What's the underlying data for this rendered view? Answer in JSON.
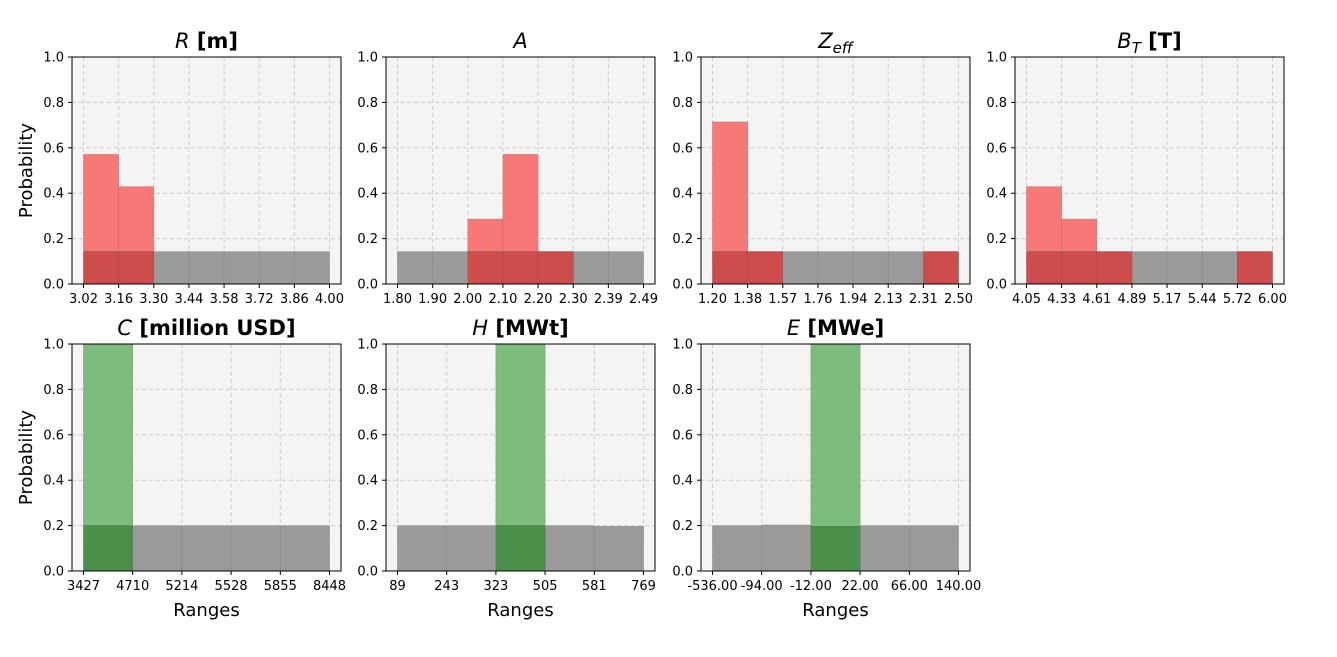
{
  "figure": {
    "y_tick_labels": [
      "0.0",
      "0.2",
      "0.4",
      "0.6",
      "0.8",
      "1.0"
    ],
    "ylabel": "Probability",
    "xlabel": "Ranges"
  },
  "colors": {
    "prior": "#9a9a9a",
    "input_posterior": "#f87878",
    "input_overlap": "#cf4c4c",
    "output_posterior": "#7cbc7c",
    "output_overlap": "#4a8f4a",
    "plot_background": "#f4f4f4",
    "grid": "#cccccc"
  },
  "chart_data": [
    {
      "type": "bar",
      "title_symbol": "R",
      "title_unit": "[m]",
      "x_tick_labels": [
        "3.02",
        "3.16",
        "3.30",
        "3.44",
        "3.58",
        "3.72",
        "3.86",
        "4.00"
      ],
      "ylim": [
        0,
        1
      ],
      "series": [
        {
          "role": "prior",
          "values": [
            0.143,
            0.143,
            0.143,
            0.143,
            0.143,
            0.143,
            0.143
          ]
        },
        {
          "role": "posterior",
          "values": [
            0.571,
            0.429,
            0,
            0,
            0,
            0,
            0
          ]
        }
      ]
    },
    {
      "type": "bar",
      "title_symbol": "A",
      "title_unit": "",
      "x_tick_labels": [
        "1.80",
        "1.90",
        "2.00",
        "2.10",
        "2.20",
        "2.30",
        "2.39",
        "2.49"
      ],
      "ylim": [
        0,
        1
      ],
      "series": [
        {
          "role": "prior",
          "values": [
            0.143,
            0.143,
            0.143,
            0.143,
            0.143,
            0.143,
            0.143
          ]
        },
        {
          "role": "posterior",
          "values": [
            0,
            0,
            0.286,
            0.571,
            0.143,
            0,
            0
          ]
        }
      ]
    },
    {
      "type": "bar",
      "title_symbol": "Z",
      "title_subscript": "eff",
      "title_unit": "",
      "x_tick_labels": [
        "1.20",
        "1.38",
        "1.57",
        "1.76",
        "1.94",
        "2.13",
        "2.31",
        "2.50"
      ],
      "ylim": [
        0,
        1
      ],
      "series": [
        {
          "role": "prior",
          "values": [
            0.143,
            0.143,
            0.143,
            0.143,
            0.143,
            0.143,
            0.143
          ]
        },
        {
          "role": "posterior",
          "values": [
            0.714,
            0.143,
            0,
            0,
            0,
            0,
            0.143
          ]
        }
      ]
    },
    {
      "type": "bar",
      "title_symbol": "B",
      "title_subscript": "T",
      "title_unit": "[T]",
      "x_tick_labels": [
        "4.05",
        "4.33",
        "4.61",
        "4.89",
        "5.17",
        "5.44",
        "5.72",
        "6.00"
      ],
      "ylim": [
        0,
        1
      ],
      "series": [
        {
          "role": "prior",
          "values": [
            0.143,
            0.143,
            0.143,
            0.143,
            0.143,
            0.143,
            0.143
          ]
        },
        {
          "role": "posterior",
          "values": [
            0.429,
            0.286,
            0.143,
            0,
            0,
            0,
            0.143
          ]
        }
      ]
    },
    {
      "type": "bar",
      "title_symbol": "C",
      "title_unit": "[million USD]",
      "x_tick_labels": [
        "3427",
        "4710",
        "5214",
        "5528",
        "5855",
        "8448"
      ],
      "ylim": [
        0,
        1
      ],
      "series": [
        {
          "role": "prior",
          "values": [
            0.2,
            0.2,
            0.2,
            0.2,
            0.2
          ]
        },
        {
          "role": "posterior",
          "values": [
            1.0,
            0,
            0,
            0,
            0
          ]
        }
      ]
    },
    {
      "type": "bar",
      "title_symbol": "H",
      "title_unit": "[MWt]",
      "x_tick_labels": [
        "89",
        "243",
        "323",
        "505",
        "581",
        "769"
      ],
      "ylim": [
        0,
        1
      ],
      "series": [
        {
          "role": "prior",
          "values": [
            0.2,
            0.2,
            0.2,
            0.2,
            0.197
          ]
        },
        {
          "role": "posterior",
          "values": [
            0,
            0,
            1.0,
            0,
            0
          ]
        }
      ]
    },
    {
      "type": "bar",
      "title_symbol": "E",
      "title_unit": "[MWe]",
      "x_tick_labels": [
        "-536.00",
        "-94.00",
        "-12.00",
        "22.00",
        "66.00",
        "140.00"
      ],
      "ylim": [
        0,
        1
      ],
      "series": [
        {
          "role": "prior",
          "values": [
            0.2,
            0.203,
            0.197,
            0.2,
            0.2
          ]
        },
        {
          "role": "posterior",
          "values": [
            0,
            0,
            1.0,
            0,
            0
          ]
        }
      ]
    }
  ]
}
